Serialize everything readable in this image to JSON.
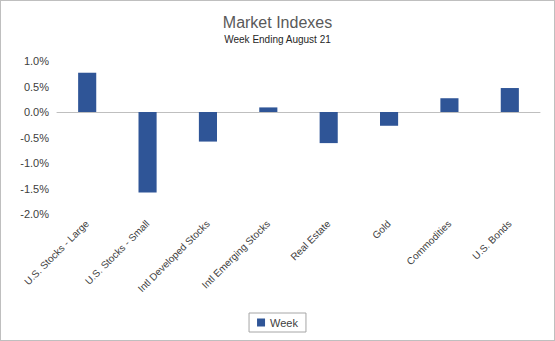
{
  "chart_data": {
    "type": "bar",
    "title": "Market Indexes",
    "subtitle": "Week Ending August 21",
    "categories": [
      "U.S. Stocks - Large",
      "U.S. Stocks - Small",
      "Intl Developed Stocks",
      "Intl Emerging Stocks",
      "Real Estate",
      "Gold",
      "Commodities",
      "U.S. Bonds"
    ],
    "series": [
      {
        "name": "Week",
        "color": "#2f5597",
        "values": [
          0.77,
          -1.58,
          -0.58,
          0.09,
          -0.61,
          -0.27,
          0.27,
          0.47
        ]
      }
    ],
    "ylim": [
      -2,
      1
    ],
    "yticks": [
      {
        "value": -2,
        "label": "-2.0%"
      },
      {
        "value": -1.5,
        "label": "-1.5%"
      },
      {
        "value": -1,
        "label": "-1.0%"
      },
      {
        "value": -0.5,
        "label": "-0.5%"
      },
      {
        "value": 0,
        "label": "0.0%"
      },
      {
        "value": 0.5,
        "label": "0.5%"
      },
      {
        "value": 1,
        "label": "1.0%"
      }
    ],
    "grid": false,
    "legend": "bottom"
  }
}
